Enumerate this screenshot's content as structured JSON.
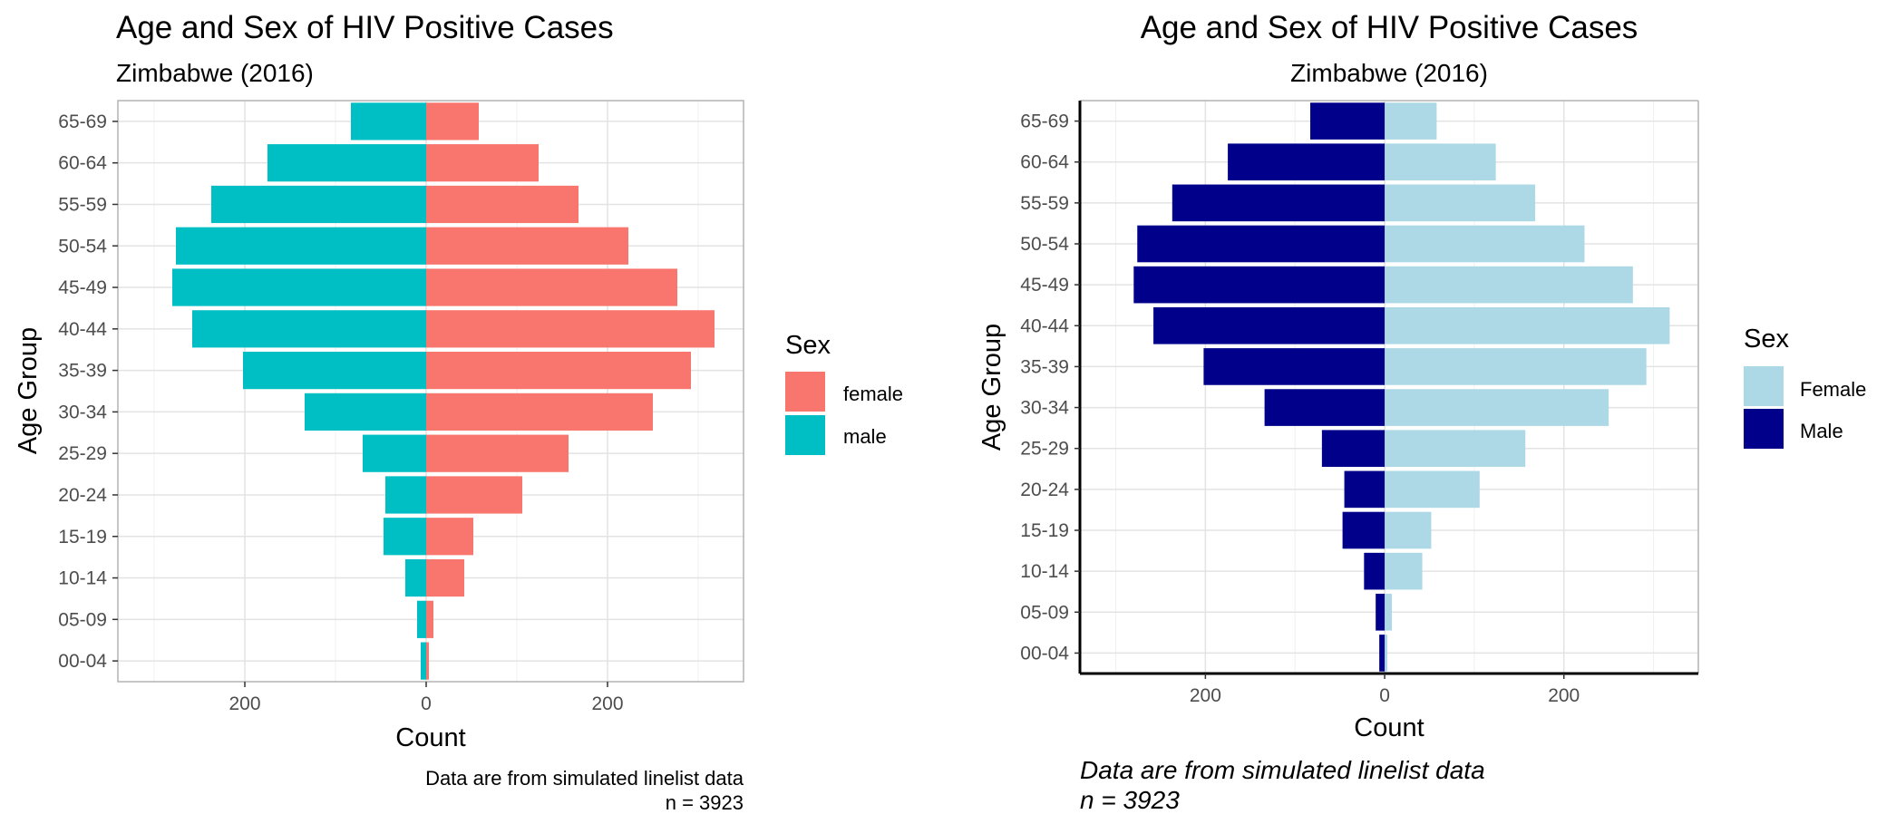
{
  "chart_data": [
    {
      "type": "bar",
      "orientation": "horizontal",
      "style": "population-pyramid",
      "title": "Age and Sex of HIV Positive Cases",
      "subtitle": "Zimbabwe (2016)",
      "title_align": "left",
      "xlabel": "Count",
      "ylabel": "Age Group",
      "xlim": [
        -340,
        350
      ],
      "x_ticks": [
        -200,
        0,
        200
      ],
      "x_tick_labels": [
        "200",
        "0",
        "200"
      ],
      "categories": [
        "00-04",
        "05-09",
        "10-14",
        "15-19",
        "20-24",
        "25-29",
        "30-34",
        "35-39",
        "40-44",
        "45-49",
        "50-54",
        "55-59",
        "60-64",
        "65-69"
      ],
      "series": [
        {
          "name": "female",
          "color": "#F8766D",
          "values": [
            3,
            8,
            42,
            52,
            106,
            157,
            250,
            292,
            318,
            277,
            223,
            168,
            124,
            58
          ]
        },
        {
          "name": "male",
          "color": "#00BFC4",
          "values": [
            6,
            10,
            23,
            47,
            45,
            70,
            134,
            202,
            258,
            280,
            276,
            237,
            175,
            83
          ]
        }
      ],
      "legend": {
        "title": "Sex",
        "position": "right",
        "items": [
          "female",
          "male"
        ]
      },
      "caption": [
        "Data are from simulated linelist data",
        "n = 3923"
      ],
      "caption_style": "plain, right-aligned",
      "panel_border": true,
      "grid": true
    },
    {
      "type": "bar",
      "orientation": "horizontal",
      "style": "population-pyramid",
      "title": "Age and Sex of HIV Positive Cases",
      "subtitle": "Zimbabwe (2016)",
      "title_align": "center",
      "xlabel": "Count",
      "ylabel": "Age Group",
      "xlim": [
        -340,
        350
      ],
      "x_ticks": [
        -200,
        0,
        200
      ],
      "x_tick_labels": [
        "200",
        "0",
        "200"
      ],
      "categories": [
        "00-04",
        "05-09",
        "10-14",
        "15-19",
        "20-24",
        "25-29",
        "30-34",
        "35-39",
        "40-44",
        "45-49",
        "50-54",
        "55-59",
        "60-64",
        "65-69"
      ],
      "series": [
        {
          "name": "Female",
          "color": "#ADD8E6",
          "values": [
            3,
            8,
            42,
            52,
            106,
            157,
            250,
            292,
            318,
            277,
            223,
            168,
            124,
            58
          ]
        },
        {
          "name": "Male",
          "color": "#00008B",
          "values": [
            6,
            10,
            23,
            47,
            45,
            70,
            134,
            202,
            258,
            280,
            276,
            237,
            175,
            83
          ]
        }
      ],
      "legend": {
        "title": "Sex",
        "position": "right",
        "items": [
          "Female",
          "Male"
        ]
      },
      "caption": [
        "Data are from simulated linelist data",
        "n = 3923"
      ],
      "caption_style": "italic, left-aligned",
      "panel_border": "partial",
      "grid": true
    }
  ]
}
